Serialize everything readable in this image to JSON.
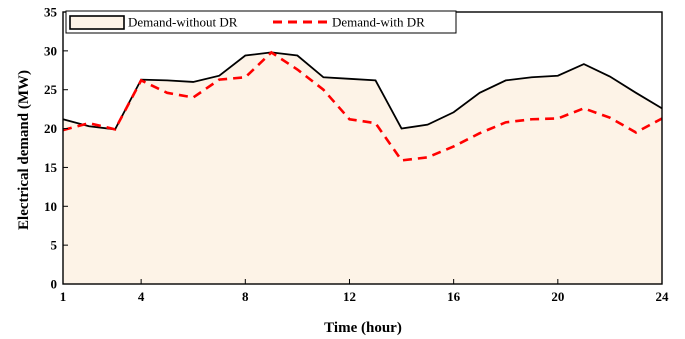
{
  "chart_data": {
    "type": "area",
    "title": "",
    "xlabel": "Time (hour)",
    "ylabel": "Electrical demand (MW)",
    "xlim": [
      1,
      24
    ],
    "ylim": [
      0,
      35
    ],
    "xticks": [
      1,
      4,
      8,
      12,
      16,
      20,
      24
    ],
    "yticks": [
      0,
      5,
      10,
      15,
      20,
      25,
      30,
      35
    ],
    "grid": false,
    "legend_position": "top",
    "x": [
      1,
      2,
      3,
      4,
      5,
      6,
      7,
      8,
      9,
      10,
      11,
      12,
      13,
      14,
      15,
      16,
      17,
      18,
      19,
      20,
      21,
      22,
      23,
      24
    ],
    "series": [
      {
        "name": "Demand-without DR",
        "style": "filled area, solid black line",
        "color": "#000000",
        "fill": "#fdf3e7",
        "values": [
          21.2,
          20.3,
          19.9,
          26.3,
          26.2,
          26.0,
          26.8,
          29.4,
          29.8,
          29.4,
          26.6,
          26.4,
          26.2,
          20.0,
          20.5,
          22.1,
          24.6,
          26.2,
          26.6,
          26.8,
          28.3,
          26.7,
          24.6,
          22.6
        ]
      },
      {
        "name": "Demand-with DR",
        "style": "dashed red line",
        "color": "#ff0000",
        "values": [
          19.8,
          20.7,
          19.9,
          26.2,
          24.6,
          24.0,
          26.3,
          26.6,
          29.8,
          27.6,
          25.0,
          21.2,
          20.7,
          15.9,
          16.3,
          17.7,
          19.4,
          20.8,
          21.2,
          21.3,
          22.6,
          21.4,
          19.5,
          21.3
        ]
      }
    ]
  }
}
